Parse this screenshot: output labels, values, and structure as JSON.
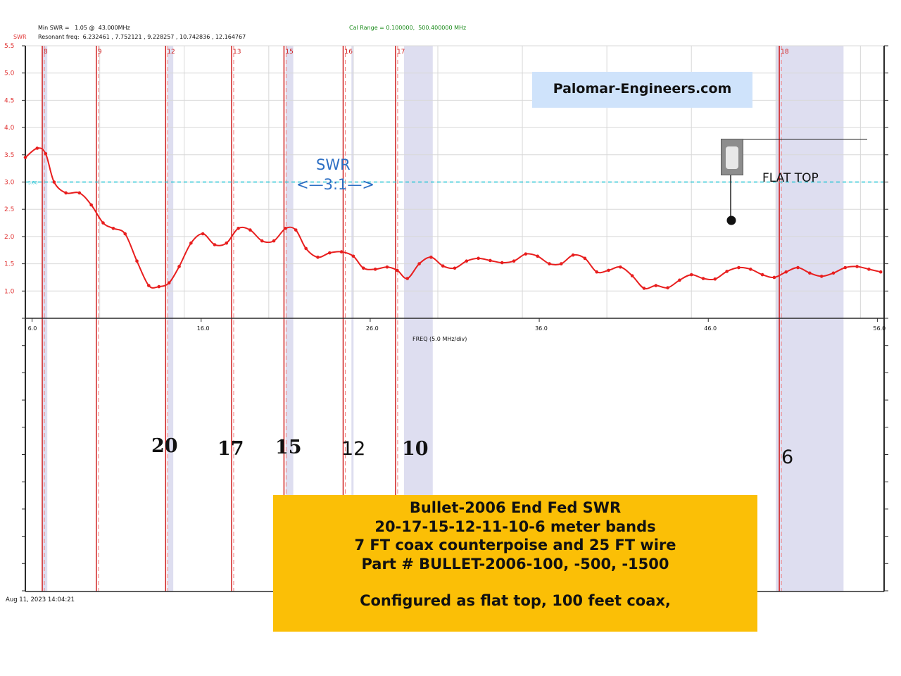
{
  "header": {
    "min_swr": "Min SWR =   1.05 @  43.000MHz",
    "swr_tag": "SWR",
    "resonant": "Resonant freq:  6.232461 , 7.752121 , 9.228257 , 10.742836 , 12.164767",
    "cal_range": "Cal Range = 0.100000,  500.400000 MHz"
  },
  "timestamp": "Aug 11, 2023  14:04:21",
  "brand": "Palomar-Engineers.com",
  "annotations": {
    "swr_label": "SWR",
    "swr_ratio": "<—3:1—>",
    "flat_top": "FLAT TOP"
  },
  "band_labels": [
    "20",
    "17",
    "15",
    "12",
    "10",
    "6"
  ],
  "info_box": {
    "line1": "Bullet-2006 End Fed SWR",
    "line2": "20-17-15-12-11-10-6 meter bands",
    "line3": "7 FT coax counterpoise and 25 FT wire",
    "line4": "Part # BULLET-2006-100, -500, -1500",
    "line5": "Configured as flat top, 100 feet coax,"
  },
  "colors": {
    "trace": "#e81e1e",
    "marker_line": "#d02020",
    "band_shade": "#dedef0",
    "ref_line": "#27c4d4",
    "axis_red": "#e03030",
    "info_bg": "#fbbf06",
    "brand_bg": "#cfe3fb"
  },
  "chart_data": {
    "type": "line",
    "xlabel": "FREQ (5.0 MHz/div)",
    "ylabel": "SWR",
    "xlim": [
      5.6,
      56.4
    ],
    "ylim": [
      0.5,
      5.5
    ],
    "x_ticks": [
      "6.0",
      "16.0",
      "26.0",
      "36.0",
      "46.0",
      "56.0"
    ],
    "y_ticks": [
      "1.0",
      "1.5",
      "2.0",
      "2.5",
      "3.0",
      "3.5",
      "4.0",
      "4.5",
      "5.0",
      "5.5"
    ],
    "reference_line": {
      "y": 3.0,
      "label": "3.00"
    },
    "markers": [
      {
        "label": "8",
        "x": 6.6
      },
      {
        "label": "9",
        "x": 9.8
      },
      {
        "label": "12",
        "x": 13.9
      },
      {
        "label": "13",
        "x": 17.8
      },
      {
        "label": "15",
        "x": 20.9
      },
      {
        "label": "16",
        "x": 24.4
      },
      {
        "label": "17",
        "x": 27.5
      },
      {
        "label": "18",
        "x": 50.2
      }
    ],
    "bands": [
      {
        "x0": 6.6,
        "x1": 6.9
      },
      {
        "x0": 14.0,
        "x1": 14.35
      },
      {
        "x0": 21.0,
        "x1": 21.45
      },
      {
        "x0": 24.89,
        "x1": 24.99
      },
      {
        "x0": 28.0,
        "x1": 29.7
      },
      {
        "x0": 50.0,
        "x1": 54.0
      }
    ],
    "series": [
      {
        "x": [
          5.6,
          6.3,
          6.8,
          7.3,
          8.0,
          8.8,
          9.5,
          10.2,
          10.8,
          11.5,
          12.2,
          12.9,
          13.5,
          14.1,
          14.7,
          15.4,
          16.1,
          16.8,
          17.5,
          18.2,
          18.9,
          19.6,
          20.3,
          21.0,
          21.6,
          22.2,
          22.9,
          23.6,
          24.3,
          25.0,
          25.6,
          26.3,
          27.0,
          27.6,
          28.2,
          28.9,
          29.6,
          30.3,
          31.0,
          31.7,
          32.4,
          33.1,
          33.8,
          34.5,
          35.2,
          35.9,
          36.6,
          37.3,
          38.0,
          38.7,
          39.4,
          40.1,
          40.8,
          41.5,
          42.2,
          42.9,
          43.6,
          44.3,
          45.0,
          45.7,
          46.4,
          47.1,
          47.8,
          48.5,
          49.2,
          49.9,
          50.6,
          51.3,
          52.0,
          52.7,
          53.4,
          54.1,
          54.8,
          55.5,
          56.2
        ],
        "y": [
          3.45,
          3.62,
          3.52,
          3.0,
          2.8,
          2.8,
          2.58,
          2.25,
          2.15,
          2.05,
          1.55,
          1.1,
          1.08,
          1.15,
          1.45,
          1.88,
          2.05,
          1.85,
          1.88,
          2.15,
          2.12,
          1.92,
          1.92,
          2.15,
          2.12,
          1.78,
          1.62,
          1.7,
          1.72,
          1.64,
          1.42,
          1.4,
          1.44,
          1.38,
          1.23,
          1.5,
          1.62,
          1.46,
          1.42,
          1.55,
          1.6,
          1.56,
          1.52,
          1.55,
          1.68,
          1.64,
          1.5,
          1.5,
          1.66,
          1.6,
          1.35,
          1.38,
          1.44,
          1.28,
          1.05,
          1.1,
          1.06,
          1.2,
          1.3,
          1.23,
          1.22,
          1.36,
          1.43,
          1.4,
          1.3,
          1.25,
          1.35,
          1.43,
          1.33,
          1.27,
          1.33,
          1.43,
          1.45,
          1.4,
          1.35
        ]
      }
    ]
  }
}
